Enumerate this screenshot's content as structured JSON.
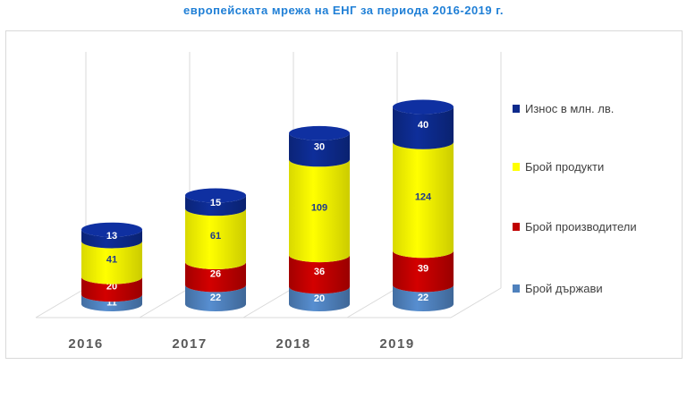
{
  "title": "европейската мрежа на ЕНГ за периода 2016-2019 г.",
  "chart_data": {
    "type": "bar",
    "subtype": "stacked-3d-cylinder",
    "categories": [
      "2016",
      "2017",
      "2018",
      "2019"
    ],
    "series": [
      {
        "name": "Брой държави",
        "color": "#4f81bd",
        "values": [
          11,
          22,
          20,
          22
        ]
      },
      {
        "name": "Брой производители",
        "color": "#c00000",
        "values": [
          20,
          26,
          36,
          39
        ]
      },
      {
        "name": "Брой продукти",
        "color": "#ffff00",
        "values": [
          41,
          61,
          109,
          124
        ]
      },
      {
        "name": "Износ в млн. лв.",
        "color": "#0d2a8c",
        "values": [
          13,
          15,
          30,
          40
        ]
      }
    ],
    "legend": "right",
    "grid": true,
    "xlabel": "",
    "ylabel": ""
  }
}
